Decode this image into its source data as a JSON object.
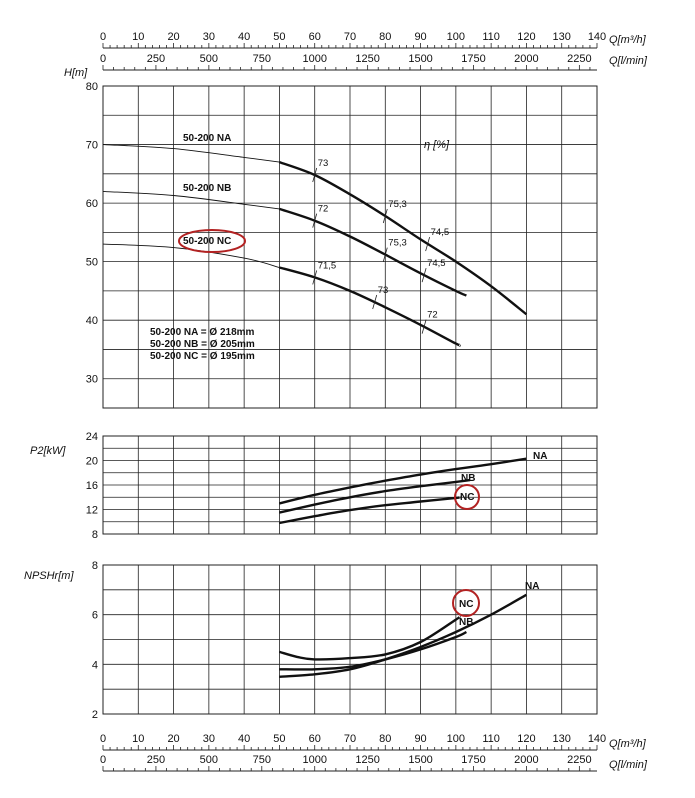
{
  "axes": {
    "q_m3h_unit": "Q[m³/h]",
    "q_lmin_unit": "Q[l/min]",
    "q_m3h_ticks": [
      0,
      10,
      20,
      30,
      40,
      50,
      60,
      70,
      80,
      90,
      100,
      110,
      120,
      130,
      140
    ],
    "q_lmin_ticks": [
      0,
      250,
      500,
      750,
      1000,
      1250,
      1500,
      1750,
      2000,
      2250
    ],
    "h_label": "H[m]",
    "h_ticks": [
      80,
      70,
      60,
      50,
      40,
      30
    ],
    "p2_label": "P2[kW]",
    "p2_ticks": [
      24,
      20,
      16,
      12,
      8
    ],
    "npsh_label": "NPSHr[m]",
    "npsh_ticks": [
      8,
      6,
      4,
      2
    ],
    "eta_label": "η [%]"
  },
  "legend": {
    "na": "50-200 NA",
    "nb": "50-200 NB",
    "nc": "50-200 NC",
    "dia_na": "50-200 NA = Ø 218mm",
    "dia_nb": "50-200 NB = Ø 205mm",
    "dia_nc": "50-200 NC = Ø 195mm"
  },
  "chart_data": [
    {
      "type": "line",
      "ylabel": "H[m]",
      "xlabel": "Q[m³/h]",
      "xlim": [
        0,
        140
      ],
      "ylim": [
        25,
        80
      ],
      "series": [
        {
          "name": "50-200 NA",
          "x": [
            0,
            20,
            40,
            50,
            60,
            70,
            80,
            90,
            100,
            110,
            120
          ],
          "y": [
            70,
            69.3,
            67.8,
            67,
            64.8,
            61.5,
            57.8,
            53.8,
            50,
            45.8,
            41
          ]
        },
        {
          "name": "50-200 NB",
          "x": [
            0,
            20,
            40,
            50,
            60,
            70,
            80,
            90,
            100,
            103
          ],
          "y": [
            62,
            61.3,
            59.8,
            59,
            57,
            54.3,
            51.2,
            48,
            45,
            44.2
          ]
        },
        {
          "name": "50-200 NC",
          "x": [
            0,
            20,
            40,
            50,
            60,
            70,
            80,
            90,
            100,
            101
          ],
          "y": [
            53,
            52.4,
            50.6,
            49,
            47.3,
            45,
            42.2,
            39.2,
            36,
            35.8
          ]
        }
      ],
      "efficiency_marks": [
        {
          "curve": "50-200 NA",
          "x": 60,
          "y": 64.8,
          "label": "73"
        },
        {
          "curve": "50-200 NA",
          "x": 80,
          "y": 57.8,
          "label": "75,3"
        },
        {
          "curve": "50-200 NA",
          "x": 92,
          "y": 53,
          "label": "74,5"
        },
        {
          "curve": "50-200 NB",
          "x": 60,
          "y": 57,
          "label": "72"
        },
        {
          "curve": "50-200 NB",
          "x": 80,
          "y": 51.2,
          "label": "75,3"
        },
        {
          "curve": "50-200 NB",
          "x": 91,
          "y": 47.7,
          "label": "74,5"
        },
        {
          "curve": "50-200 NC",
          "x": 60,
          "y": 47.3,
          "label": "71,5"
        },
        {
          "curve": "50-200 NC",
          "x": 77,
          "y": 43.1,
          "label": "73"
        },
        {
          "curve": "50-200 NC",
          "x": 91,
          "y": 38.9,
          "label": "72"
        }
      ]
    },
    {
      "type": "line",
      "ylabel": "P2[kW]",
      "ylim": [
        8,
        24
      ],
      "series": [
        {
          "name": "NA",
          "x": [
            50,
            60,
            70,
            80,
            90,
            100,
            110,
            120
          ],
          "y": [
            13,
            14.4,
            15.6,
            16.7,
            17.7,
            18.6,
            19.4,
            20.3
          ]
        },
        {
          "name": "NB",
          "x": [
            50,
            60,
            70,
            80,
            90,
            100,
            104
          ],
          "y": [
            11.5,
            12.8,
            14,
            15,
            15.8,
            16.5,
            16.8
          ]
        },
        {
          "name": "NC",
          "x": [
            50,
            60,
            70,
            80,
            90,
            100,
            101
          ],
          "y": [
            9.8,
            10.9,
            11.9,
            12.7,
            13.3,
            13.9,
            14
          ]
        }
      ]
    },
    {
      "type": "line",
      "ylabel": "NPSHr[m]",
      "ylim": [
        2,
        8
      ],
      "series": [
        {
          "name": "NA",
          "x": [
            50,
            60,
            70,
            80,
            90,
            100,
            110,
            120
          ],
          "y": [
            3.5,
            3.6,
            3.8,
            4.2,
            4.7,
            5.3,
            6,
            6.8
          ]
        },
        {
          "name": "NB",
          "x": [
            50,
            60,
            70,
            80,
            90,
            100,
            103
          ],
          "y": [
            3.8,
            3.8,
            3.9,
            4.2,
            4.6,
            5.1,
            5.3
          ]
        },
        {
          "name": "NC",
          "x": [
            50,
            55,
            60,
            70,
            80,
            90,
            100,
            101
          ],
          "y": [
            4.5,
            4.3,
            4.2,
            4.25,
            4.4,
            4.9,
            5.8,
            5.9
          ]
        }
      ]
    }
  ]
}
